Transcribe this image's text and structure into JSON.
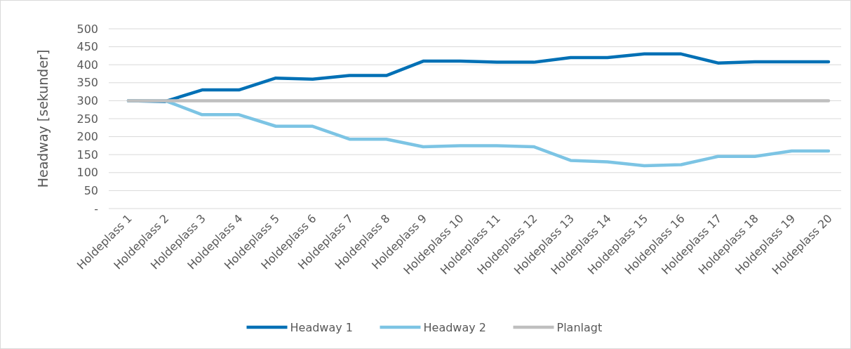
{
  "chart_data": {
    "type": "line",
    "ylabel": "Headway [sekunder]",
    "categories": [
      "Holdeplass 1",
      "Holdeplass 2",
      "Holdeplass 3",
      "Holdeplass 4",
      "Holdeplass 5",
      "Holdeplass 6",
      "Holdeplass 7",
      "Holdeplass 8",
      "Holdeplass 9",
      "Holdeplass 10",
      "Holdeplass 11",
      "Holdeplass 12",
      "Holdeplass 13",
      "Holdeplass 14",
      "Holdeplass 15",
      "Holdeplass 16",
      "Holdeplass 17",
      "Holdeplass 18",
      "Holdeplass 19",
      "Holdeplass 20"
    ],
    "series": [
      {
        "name": "Headway 1",
        "color": "#0070b5",
        "values": [
          300,
          298,
          330,
          330,
          363,
          360,
          370,
          370,
          410,
          410,
          407,
          407,
          420,
          420,
          430,
          430,
          405,
          408,
          408,
          408
        ]
      },
      {
        "name": "Headway 2",
        "color": "#7cc4e4",
        "values": [
          300,
          300,
          261,
          261,
          229,
          229,
          193,
          193,
          172,
          175,
          175,
          172,
          134,
          130,
          119,
          122,
          145,
          145,
          160,
          160
        ]
      },
      {
        "name": "Planlagt",
        "color": "#bfbfbf",
        "values": [
          300,
          300,
          300,
          300,
          300,
          300,
          300,
          300,
          300,
          300,
          300,
          300,
          300,
          300,
          300,
          300,
          300,
          300,
          300,
          300
        ]
      }
    ],
    "ylim": [
      0,
      500
    ],
    "yticks": [
      {
        "value": 0,
        "label": "-"
      },
      50,
      100,
      150,
      200,
      250,
      300,
      350,
      400,
      450,
      500
    ],
    "grid": "y",
    "legend": "bottom",
    "marker": "none",
    "line_style": "solid"
  }
}
